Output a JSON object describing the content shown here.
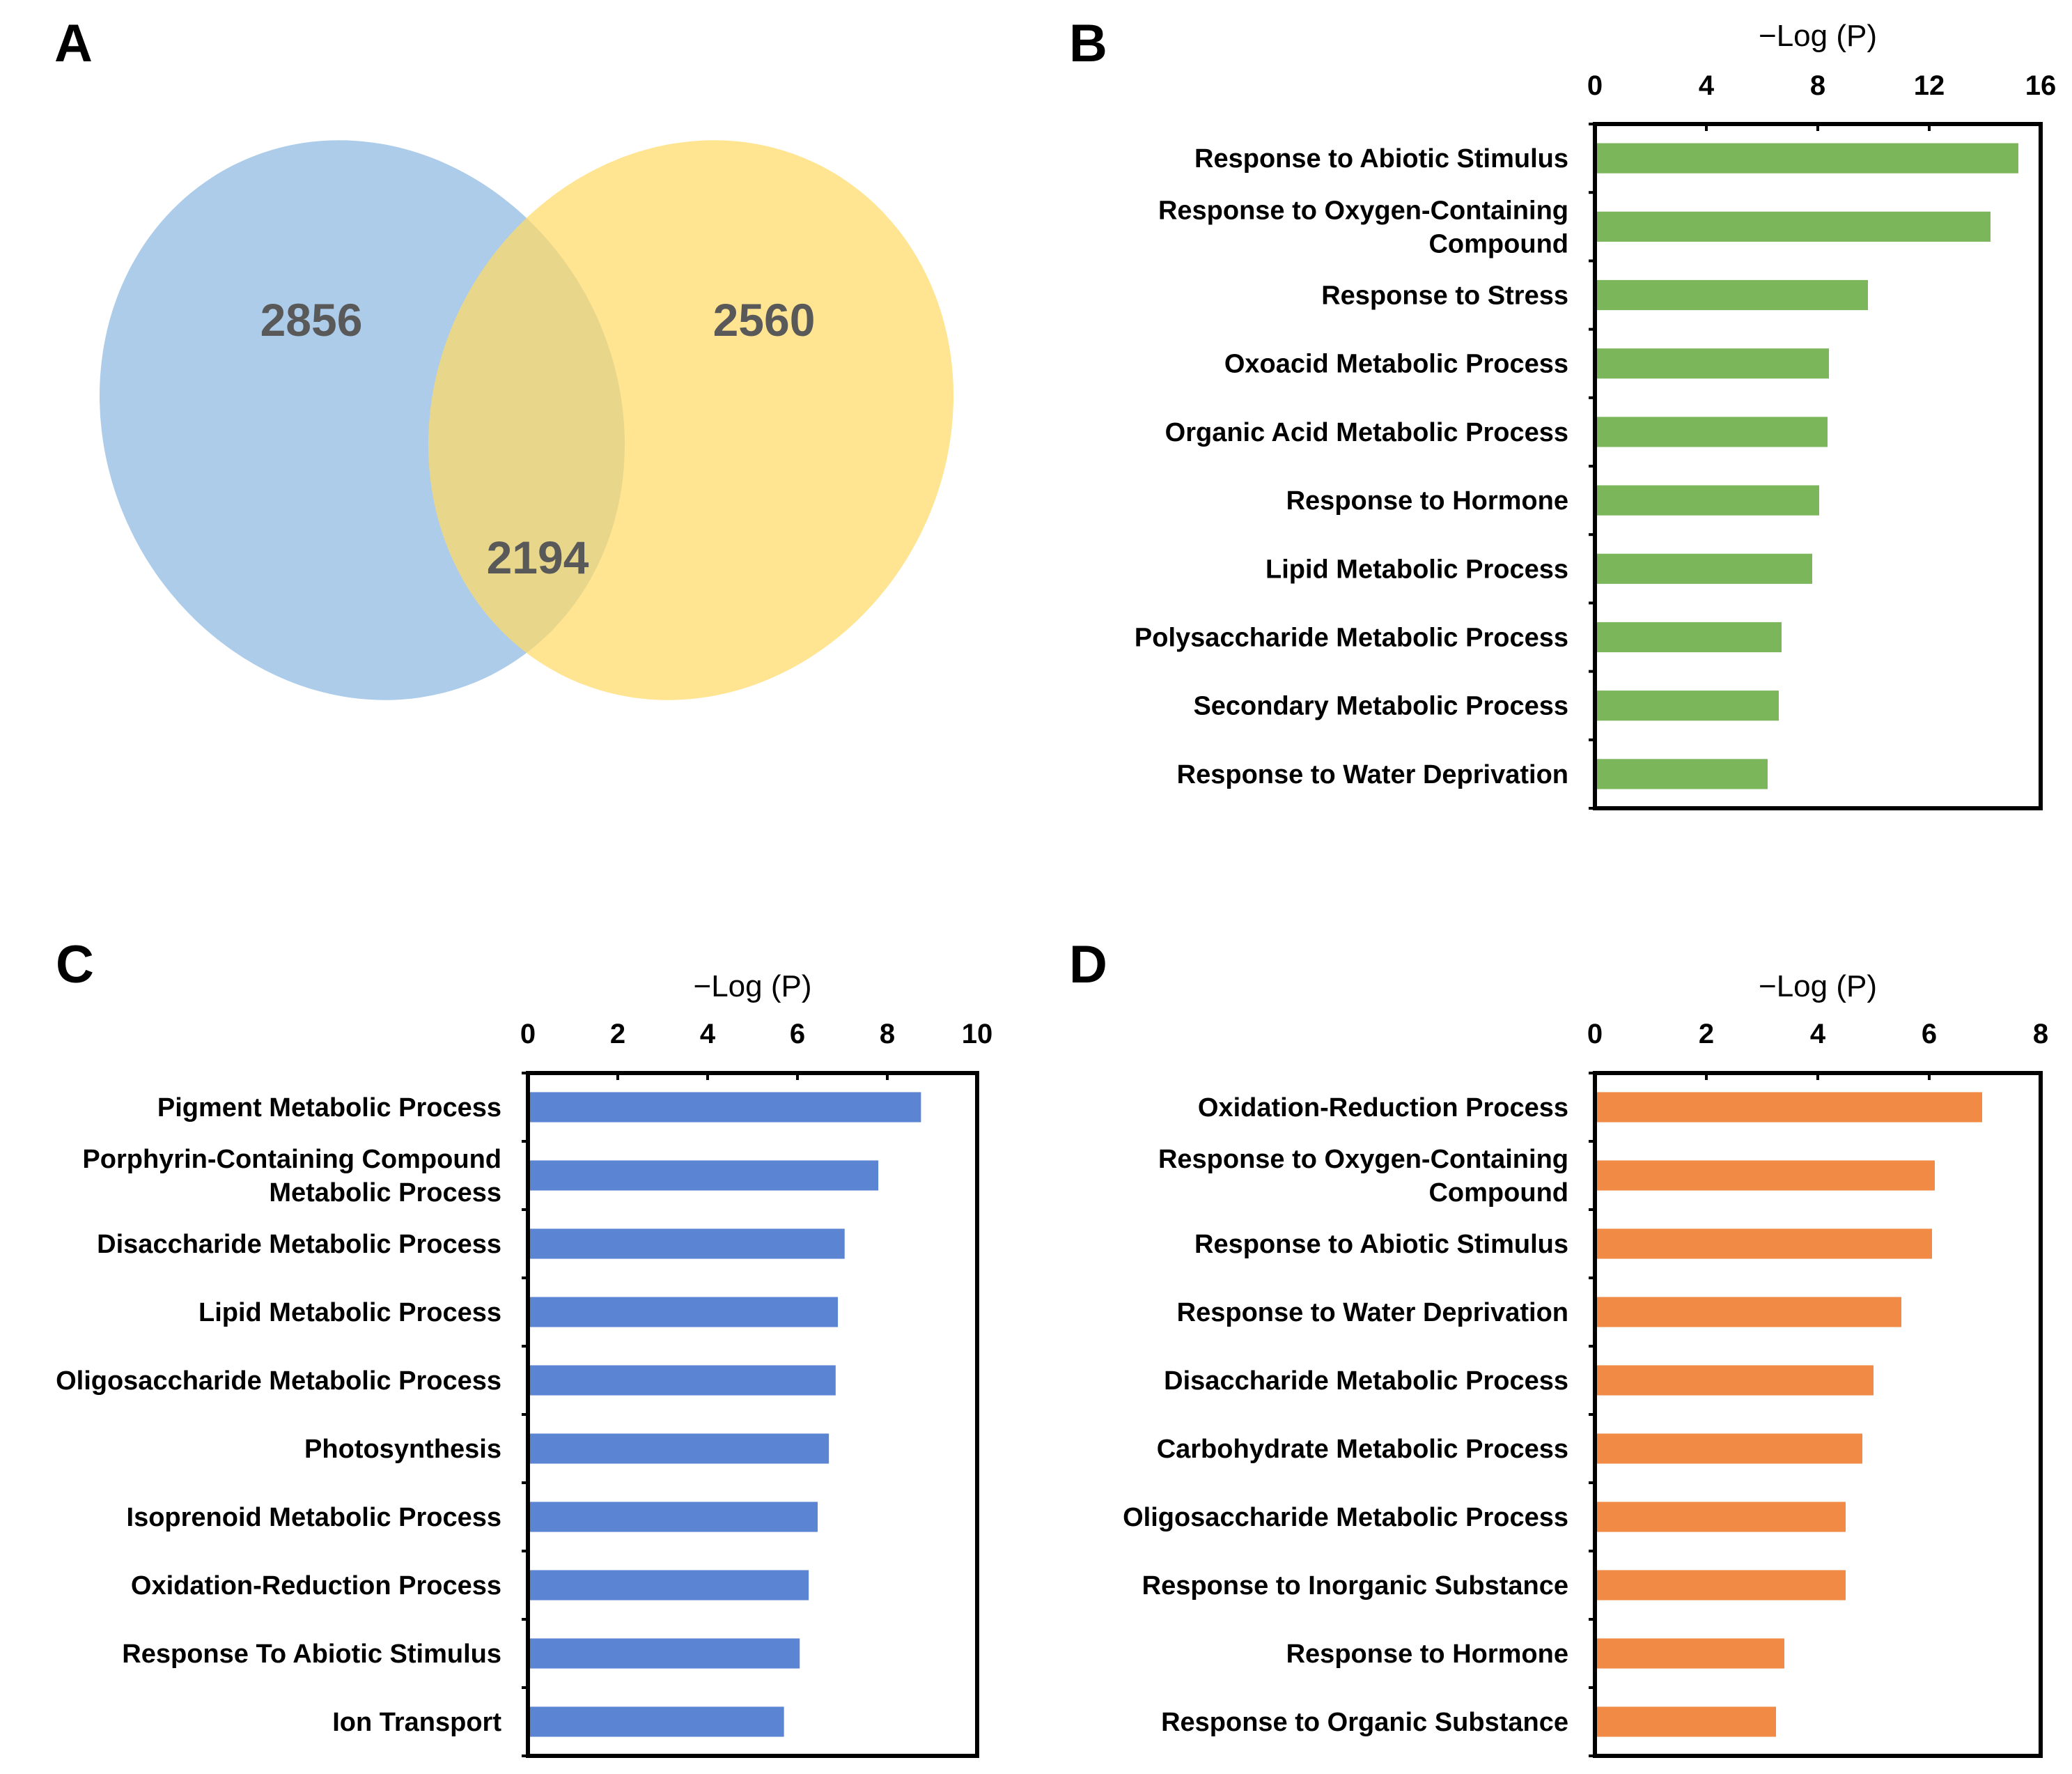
{
  "panels": {
    "a": "A",
    "b": "B",
    "c": "C",
    "d": "D"
  },
  "venn": {
    "left_only": "2856",
    "right_only": "2560",
    "overlap": "2194",
    "colors": {
      "left": "#9DC3E6",
      "right": "#FFD966"
    }
  },
  "chart_data": [
    {
      "id": "B",
      "type": "bar",
      "orientation": "horizontal",
      "xlabel": "−Log (P)",
      "xlim": [
        0,
        16
      ],
      "ticks": [
        0,
        4,
        8,
        12,
        16
      ],
      "color": "#7CB65A",
      "categories": [
        "Response to Abiotic Stimulus",
        "Response to Oxygen-Containing Compound",
        "Response to Stress",
        "Oxoacid Metabolic Process",
        "Organic Acid Metabolic Process",
        "Response to Hormone",
        "Lipid Metabolic Process",
        "Polysaccharide Metabolic Process",
        "Secondary Metabolic Process",
        "Response to Water Deprivation"
      ],
      "label_lines": [
        [
          "Response to Abiotic Stimulus"
        ],
        [
          "Response to Oxygen-Containing",
          "Compound"
        ],
        [
          "Response to Stress"
        ],
        [
          "Oxoacid Metabolic Process"
        ],
        [
          "Organic Acid Metabolic Process"
        ],
        [
          "Response to Hormone"
        ],
        [
          "Lipid Metabolic Process"
        ],
        [
          "Polysaccharide Metabolic Process"
        ],
        [
          "Secondary Metabolic Process"
        ],
        [
          "Response to Water Deprivation"
        ]
      ],
      "values": [
        15.2,
        14.2,
        9.8,
        8.4,
        8.35,
        8.05,
        7.8,
        6.7,
        6.6,
        6.2
      ]
    },
    {
      "id": "C",
      "type": "bar",
      "orientation": "horizontal",
      "xlabel": "−Log (P)",
      "xlim": [
        0,
        10
      ],
      "ticks": [
        0,
        2,
        4,
        6,
        8,
        10
      ],
      "color": "#5B84D2",
      "categories": [
        "Pigment Metabolic Process",
        "Porphyrin-Containing Compound Metabolic Process",
        "Disaccharide Metabolic Process",
        "Lipid Metabolic Process",
        "Oligosaccharide Metabolic Process",
        "Photosynthesis",
        "Isoprenoid Metabolic Process",
        "Oxidation-Reduction Process",
        "Response To Abiotic Stimulus",
        "Ion Transport"
      ],
      "label_lines": [
        [
          "Pigment Metabolic Process"
        ],
        [
          "Porphyrin-Containing Compound",
          "Metabolic Process"
        ],
        [
          "Disaccharide Metabolic Process"
        ],
        [
          "Lipid Metabolic Process"
        ],
        [
          "Oligosaccharide Metabolic Process"
        ],
        [
          "Photosynthesis"
        ],
        [
          "Isoprenoid Metabolic Process"
        ],
        [
          "Oxidation-Reduction Process"
        ],
        [
          "Response To Abiotic Stimulus"
        ],
        [
          "Ion Transport"
        ]
      ],
      "values": [
        8.75,
        7.8,
        7.05,
        6.9,
        6.85,
        6.7,
        6.45,
        6.25,
        6.05,
        5.7
      ]
    },
    {
      "id": "D",
      "type": "bar",
      "orientation": "horizontal",
      "xlabel": "−Log (P)",
      "xlim": [
        0,
        8
      ],
      "ticks": [
        0,
        2,
        4,
        6,
        8
      ],
      "color": "#F08A45",
      "categories": [
        "Oxidation-Reduction Process",
        "Response to Oxygen-Containing Compound",
        "Response to Abiotic Stimulus",
        "Response to Water Deprivation",
        "Disaccharide Metabolic Process",
        "Carbohydrate Metabolic Process",
        "Oligosaccharide Metabolic Process",
        "Response to Inorganic Substance",
        "Response to Hormone",
        "Response to Organic Substance"
      ],
      "label_lines": [
        [
          "Oxidation-Reduction Process"
        ],
        [
          "Response to Oxygen-Containing",
          "Compound"
        ],
        [
          "Response to Abiotic Stimulus"
        ],
        [
          "Response to Water Deprivation"
        ],
        [
          "Disaccharide Metabolic Process"
        ],
        [
          "Carbohydrate Metabolic Process"
        ],
        [
          "Oligosaccharide Metabolic Process"
        ],
        [
          "Response to Inorganic Substance"
        ],
        [
          "Response to Hormone"
        ],
        [
          "Response to Organic Substance"
        ]
      ],
      "values": [
        6.95,
        6.1,
        6.05,
        5.5,
        5.0,
        4.8,
        4.5,
        4.5,
        3.4,
        3.25
      ]
    }
  ]
}
